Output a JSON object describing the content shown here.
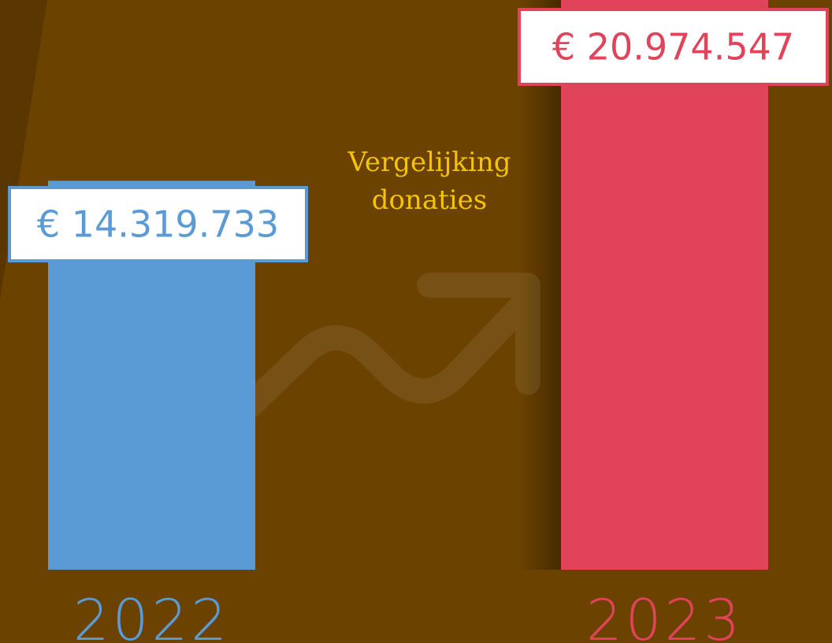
{
  "chart_data": {
    "type": "bar",
    "title": "Vergelijking donaties",
    "categories": [
      "2022",
      "2023"
    ],
    "values": [
      14319733,
      20974547
    ],
    "value_labels": [
      "€ 14.319.733",
      "€ 20.974.547"
    ],
    "colors": [
      "#5b9bd5",
      "#e0435a"
    ]
  }
}
